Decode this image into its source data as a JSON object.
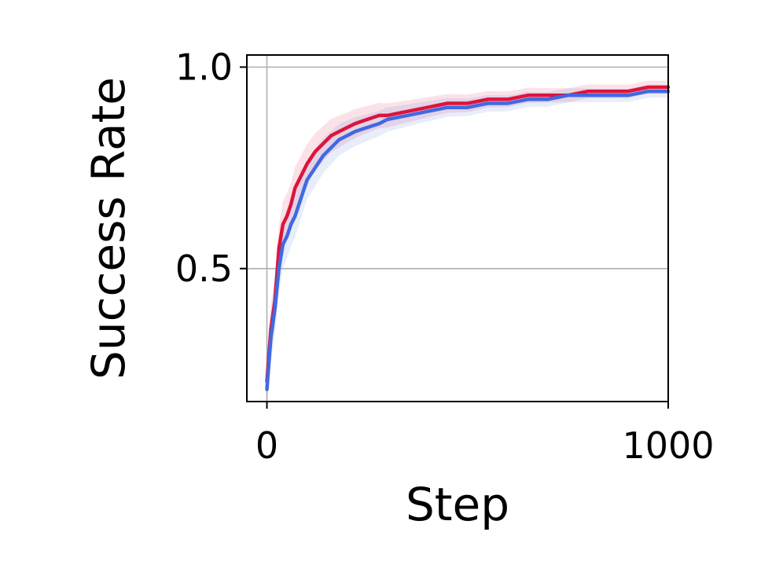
{
  "chart_data": {
    "type": "line",
    "title": "",
    "xlabel": "Step",
    "ylabel": "Success Rate",
    "xlim": [
      -50,
      1000
    ],
    "ylim": [
      0.17,
      1.03
    ],
    "xticks": [
      0,
      1000
    ],
    "xtick_labels": [
      "0",
      "1000"
    ],
    "yticks": [
      0.5,
      1.0
    ],
    "ytick_labels": [
      "0.5",
      "1.0"
    ],
    "grid": true,
    "legend": "none",
    "colors": {
      "series_red": "#dc143c",
      "series_blue": "#4169e1",
      "grid": "#b0b0b0",
      "axes": "#000000"
    },
    "series": [
      {
        "color": "#dc143c",
        "x": [
          0,
          10,
          20,
          30,
          40,
          50,
          60,
          70,
          80,
          90,
          100,
          120,
          140,
          160,
          180,
          200,
          220,
          250,
          280,
          300,
          350,
          400,
          450,
          500,
          550,
          600,
          650,
          700,
          750,
          800,
          850,
          900,
          950,
          1000
        ],
        "y": [
          0.22,
          0.35,
          0.42,
          0.55,
          0.61,
          0.63,
          0.66,
          0.7,
          0.72,
          0.74,
          0.76,
          0.79,
          0.81,
          0.83,
          0.84,
          0.85,
          0.86,
          0.87,
          0.88,
          0.88,
          0.89,
          0.9,
          0.91,
          0.91,
          0.92,
          0.92,
          0.93,
          0.93,
          0.93,
          0.94,
          0.94,
          0.94,
          0.95,
          0.95
        ]
      },
      {
        "color": "#4169e1",
        "x": [
          0,
          10,
          20,
          30,
          40,
          50,
          60,
          70,
          80,
          90,
          100,
          120,
          140,
          160,
          180,
          200,
          220,
          250,
          280,
          300,
          350,
          400,
          450,
          500,
          550,
          600,
          650,
          700,
          750,
          800,
          850,
          900,
          950,
          1000
        ],
        "y": [
          0.2,
          0.33,
          0.4,
          0.5,
          0.56,
          0.58,
          0.61,
          0.63,
          0.66,
          0.69,
          0.72,
          0.75,
          0.78,
          0.8,
          0.82,
          0.83,
          0.84,
          0.85,
          0.86,
          0.87,
          0.88,
          0.89,
          0.9,
          0.9,
          0.91,
          0.91,
          0.92,
          0.92,
          0.93,
          0.93,
          0.93,
          0.93,
          0.94,
          0.94
        ]
      }
    ]
  }
}
